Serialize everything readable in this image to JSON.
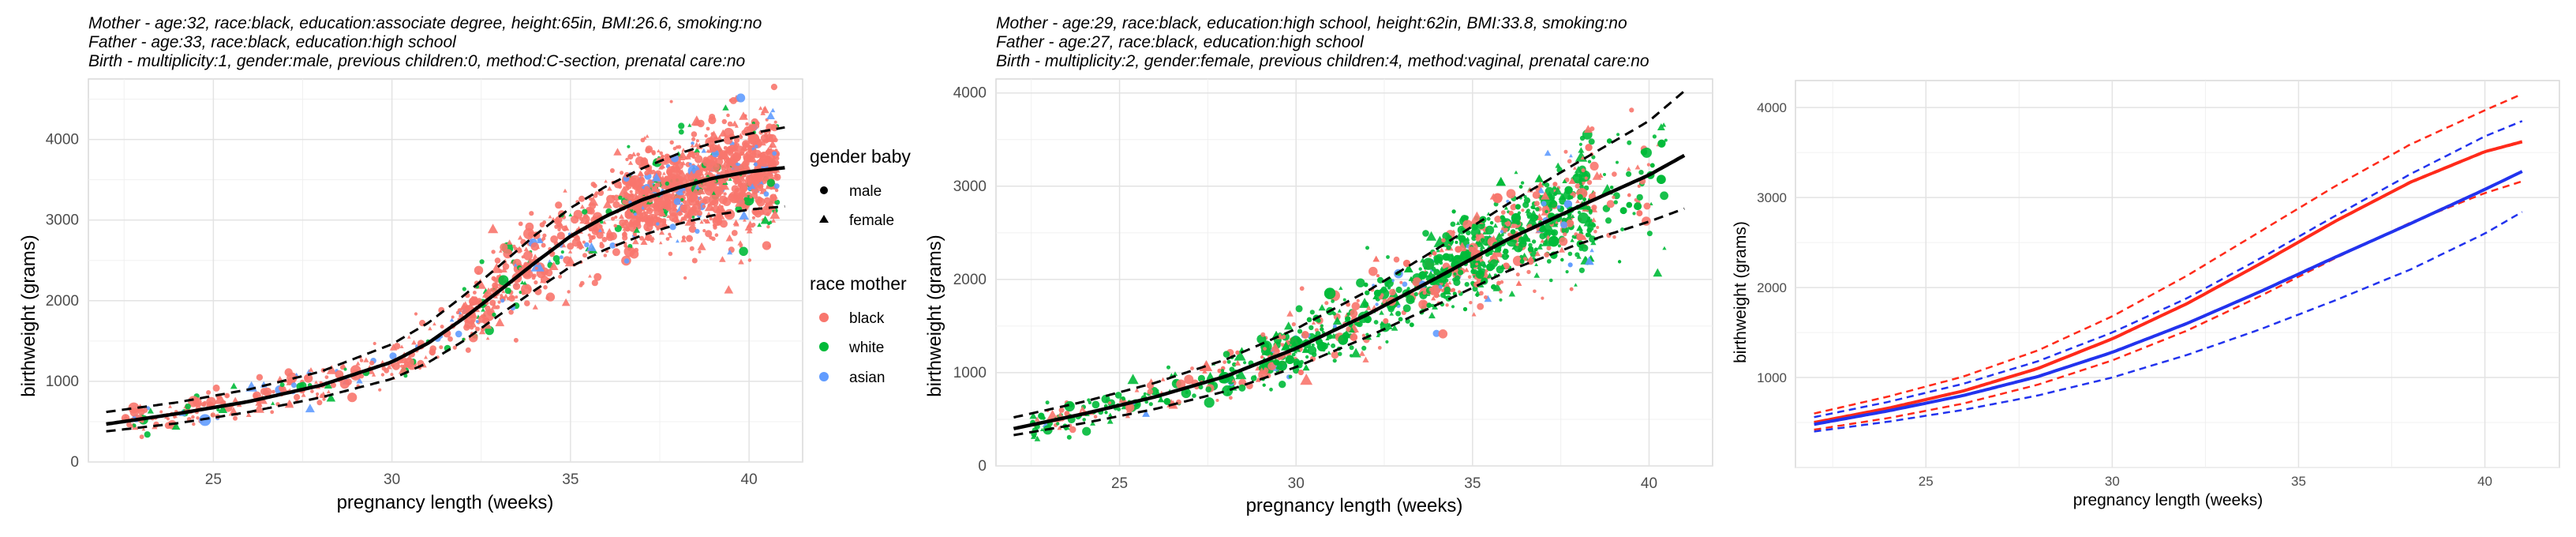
{
  "chart_data": [
    {
      "type": "scatter",
      "captions": [
        "Mother - age:32, race:black, education:associate degree, height:65in, BMI:26.6, smoking:no",
        "Father - age:33, race:black, education:high school",
        "Birth - multiplicity:1, gender:male, previous children:0, method:C-section, prenatal care:no"
      ],
      "xlabel": "pregnancy length (weeks)",
      "ylabel": "birthweight (grams)",
      "xlim": [
        21.5,
        41.5
      ],
      "ylim": [
        0,
        4750
      ],
      "xticks": [
        25,
        30,
        35,
        40
      ],
      "yticks": [
        0,
        1000,
        2000,
        3000,
        4000
      ],
      "grid": true,
      "legend_position": "right",
      "legend": {
        "gender_title": "gender baby",
        "gender_items": [
          {
            "label": "male",
            "shape": "circle"
          },
          {
            "label": "female",
            "shape": "triangle"
          }
        ],
        "race_title": "race mother",
        "race_items": [
          {
            "label": "black",
            "color": "#F8766D"
          },
          {
            "label": "white",
            "color": "#00BA38"
          },
          {
            "label": "asian",
            "color": "#619CFF"
          }
        ]
      },
      "point_mix": {
        "black": 0.84,
        "white": 0.09,
        "asian": 0.07
      },
      "fit": {
        "color": "#000000",
        "x": [
          22,
          24,
          26,
          28,
          30,
          31,
          32,
          33,
          34,
          35,
          36,
          37,
          38,
          39,
          40,
          41
        ],
        "y": [
          470,
          600,
          750,
          950,
          1240,
          1470,
          1780,
          2120,
          2470,
          2800,
          3050,
          3250,
          3400,
          3520,
          3600,
          3650
        ],
        "lower": [
          380,
          480,
          620,
          800,
          1030,
          1230,
          1500,
          1820,
          2130,
          2420,
          2640,
          2810,
          2950,
          3060,
          3130,
          3170
        ],
        "upper": [
          620,
          740,
          900,
          1120,
          1460,
          1720,
          2060,
          2430,
          2810,
          3150,
          3420,
          3640,
          3820,
          3960,
          4070,
          4150
        ]
      }
    },
    {
      "type": "scatter",
      "captions": [
        "Mother - age:29, race:black, education:high school, height:62in, BMI:33.8, smoking:no",
        "Father - age:27, race:black, education:high school",
        "Birth - multiplicity:2, gender:female, previous children:4, method:vaginal, prenatal care:no"
      ],
      "xlabel": "pregnancy length (weeks)",
      "ylabel": "birthweight (grams)",
      "xlim": [
        21.5,
        41.8
      ],
      "ylim": [
        0,
        4150
      ],
      "xticks": [
        25,
        30,
        35,
        40
      ],
      "yticks": [
        0,
        1000,
        2000,
        3000,
        4000
      ],
      "grid": true,
      "point_mix": {
        "white": 0.62,
        "black": 0.34,
        "asian": 0.04
      },
      "colors": {
        "black": "#F8766D",
        "white": "#00BA38",
        "asian": "#619CFF"
      },
      "fit": {
        "color": "#000000",
        "x": [
          22,
          24,
          26,
          28,
          30,
          32,
          34,
          36,
          38,
          40,
          41
        ],
        "y": [
          400,
          560,
          740,
          960,
          1260,
          1620,
          2020,
          2430,
          2780,
          3120,
          3330
        ],
        "lower": [
          330,
          460,
          610,
          800,
          1060,
          1380,
          1730,
          2090,
          2380,
          2620,
          2760
        ],
        "upper": [
          520,
          690,
          890,
          1140,
          1470,
          1870,
          2330,
          2810,
          3260,
          3700,
          4020
        ]
      }
    },
    {
      "type": "line",
      "xlabel": "pregnancy length (weeks)",
      "ylabel": "birthweight (grams)",
      "xlim": [
        21.5,
        42
      ],
      "ylim": [
        0,
        4300
      ],
      "xticks": [
        25,
        30,
        35,
        40
      ],
      "yticks": [
        1000,
        2000,
        3000,
        4000
      ],
      "grid": true,
      "series": [
        {
          "color": "#ff2a1a",
          "style": "solid",
          "x": [
            22,
            24,
            26,
            28,
            30,
            32,
            34,
            36,
            38,
            40,
            41
          ],
          "y": [
            500,
            660,
            850,
            1100,
            1430,
            1820,
            2270,
            2740,
            3170,
            3510,
            3620
          ]
        },
        {
          "color": "#ff2a1a",
          "style": "dashed",
          "x": [
            22,
            24,
            26,
            28,
            30,
            32,
            34,
            36,
            38,
            40,
            41
          ],
          "y": [
            600,
            790,
            1010,
            1300,
            1680,
            2130,
            2630,
            3130,
            3590,
            3970,
            4150
          ]
        },
        {
          "color": "#ff2a1a",
          "style": "dashed",
          "x": [
            22,
            24,
            26,
            28,
            30,
            32,
            34,
            36,
            38,
            40,
            41
          ],
          "y": [
            420,
            550,
            710,
            920,
            1190,
            1520,
            1910,
            2330,
            2720,
            3050,
            3180
          ]
        },
        {
          "color": "#2233ee",
          "style": "solid",
          "x": [
            22,
            24,
            26,
            28,
            30,
            32,
            34,
            36,
            38,
            40,
            41
          ],
          "y": [
            480,
            630,
            800,
            1010,
            1280,
            1600,
            1960,
            2340,
            2710,
            3090,
            3290
          ]
        },
        {
          "color": "#2233ee",
          "style": "dashed",
          "x": [
            22,
            24,
            26,
            28,
            30,
            32,
            34,
            36,
            38,
            40,
            41
          ],
          "y": [
            560,
            730,
            930,
            1180,
            1500,
            1880,
            2330,
            2800,
            3260,
            3680,
            3850
          ]
        },
        {
          "color": "#2233ee",
          "style": "dashed",
          "x": [
            22,
            24,
            26,
            28,
            30,
            32,
            34,
            36,
            38,
            40,
            41
          ],
          "y": [
            400,
            510,
            640,
            800,
            1000,
            1250,
            1540,
            1860,
            2200,
            2600,
            2840
          ]
        }
      ]
    }
  ]
}
